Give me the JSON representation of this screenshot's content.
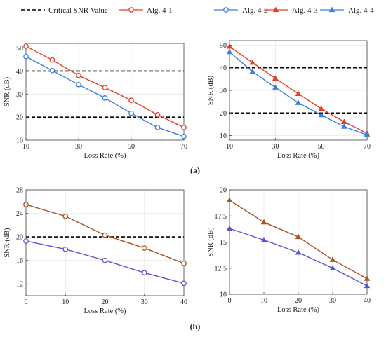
{
  "legend": [
    {
      "label": "Critical SNR Value",
      "style": "dashed",
      "color": "#000000",
      "marker": "none"
    },
    {
      "label": "Alg. 4-1",
      "style": "solid",
      "color": "#e0402a",
      "marker": "circle"
    },
    {
      "label": "Alg. 4-2",
      "style": "solid",
      "color": "#3c7ede",
      "marker": "circle"
    },
    {
      "label": "Alg. 4-3",
      "style": "solid",
      "color": "#e0402a",
      "marker": "triangle"
    },
    {
      "label": "Alg. 4-4",
      "style": "solid",
      "color": "#3c7ede",
      "marker": "triangle"
    }
  ],
  "panel_labels": [
    "(a)",
    "(b)"
  ],
  "chart_data": [
    {
      "type": "line",
      "xlabel": "Loss Rate (%)",
      "ylabel": "SNR (dB)",
      "xlim": [
        10,
        70
      ],
      "ylim": [
        10,
        52
      ],
      "xticks": [
        10,
        30,
        50,
        70
      ],
      "yticks": [
        10,
        20,
        30,
        40,
        50
      ],
      "grid": true,
      "hlines": [
        40,
        20
      ],
      "x": [
        10,
        20,
        30,
        40,
        50,
        60,
        70
      ],
      "series": [
        {
          "name": "Alg. 4-1",
          "color": "#e0402a",
          "marker": "circle",
          "values": [
            50.8,
            44.8,
            38.1,
            32.8,
            27.3,
            21.0,
            15.5
          ]
        },
        {
          "name": "Alg. 4-2",
          "color": "#3c7ede",
          "marker": "circle",
          "values": [
            46.3,
            40.2,
            34.1,
            28.3,
            21.7,
            15.5,
            11.6
          ]
        }
      ]
    },
    {
      "type": "line",
      "xlabel": "Loss Rate (%)",
      "ylabel": "SNR (dB)",
      "xlim": [
        10,
        70
      ],
      "ylim": [
        8,
        52
      ],
      "xticks": [
        10,
        30,
        50,
        70
      ],
      "yticks": [
        10,
        20,
        30,
        40,
        50
      ],
      "grid": true,
      "hlines": [
        40,
        20
      ],
      "x": [
        10,
        20,
        30,
        40,
        50,
        60,
        70
      ],
      "series": [
        {
          "name": "Alg. 4-3",
          "color": "#e0402a",
          "marker": "triangle",
          "values": [
            49.4,
            42.3,
            35.3,
            28.5,
            21.9,
            16.1,
            11.0
          ]
        },
        {
          "name": "Alg. 4-4",
          "color": "#3c7ede",
          "marker": "triangle",
          "values": [
            47.0,
            38.3,
            31.3,
            24.5,
            19.1,
            14.0,
            10.3
          ]
        }
      ]
    },
    {
      "type": "line",
      "xlabel": "Loss Rate (%)",
      "ylabel": "SNR (dB)",
      "xlim": [
        0,
        40
      ],
      "ylim": [
        10,
        28
      ],
      "xticks": [
        0,
        10,
        20,
        30,
        40
      ],
      "yticks": [
        12,
        16,
        20,
        24,
        28
      ],
      "grid": true,
      "hlines": [
        20
      ],
      "x": [
        0,
        10,
        20,
        30,
        40
      ],
      "series": [
        {
          "name": "Alg. 4-1",
          "color": "#a65424",
          "marker": "circle",
          "values": [
            25.5,
            23.5,
            20.3,
            18.1,
            15.5
          ]
        },
        {
          "name": "Alg. 4-2",
          "color": "#5a55d6",
          "marker": "circle",
          "values": [
            19.3,
            17.9,
            16.0,
            13.9,
            12.1
          ]
        }
      ]
    },
    {
      "type": "line",
      "xlabel": "Loss Rate (%)",
      "ylabel": "SNR (dB)",
      "xlim": [
        0,
        40
      ],
      "ylim": [
        10,
        20
      ],
      "xticks": [
        0,
        10,
        20,
        30,
        40
      ],
      "yticks": [
        10,
        12.5,
        15,
        17.5,
        20
      ],
      "grid": true,
      "hlines": [],
      "x": [
        0,
        10,
        20,
        30,
        40
      ],
      "series": [
        {
          "name": "Alg. 4-3",
          "color": "#a65424",
          "marker": "triangle",
          "values": [
            19.0,
            16.9,
            15.5,
            13.3,
            11.5
          ]
        },
        {
          "name": "Alg. 4-4",
          "color": "#5a55d6",
          "marker": "triangle",
          "values": [
            16.3,
            15.2,
            14.0,
            12.5,
            10.8
          ]
        }
      ]
    }
  ]
}
